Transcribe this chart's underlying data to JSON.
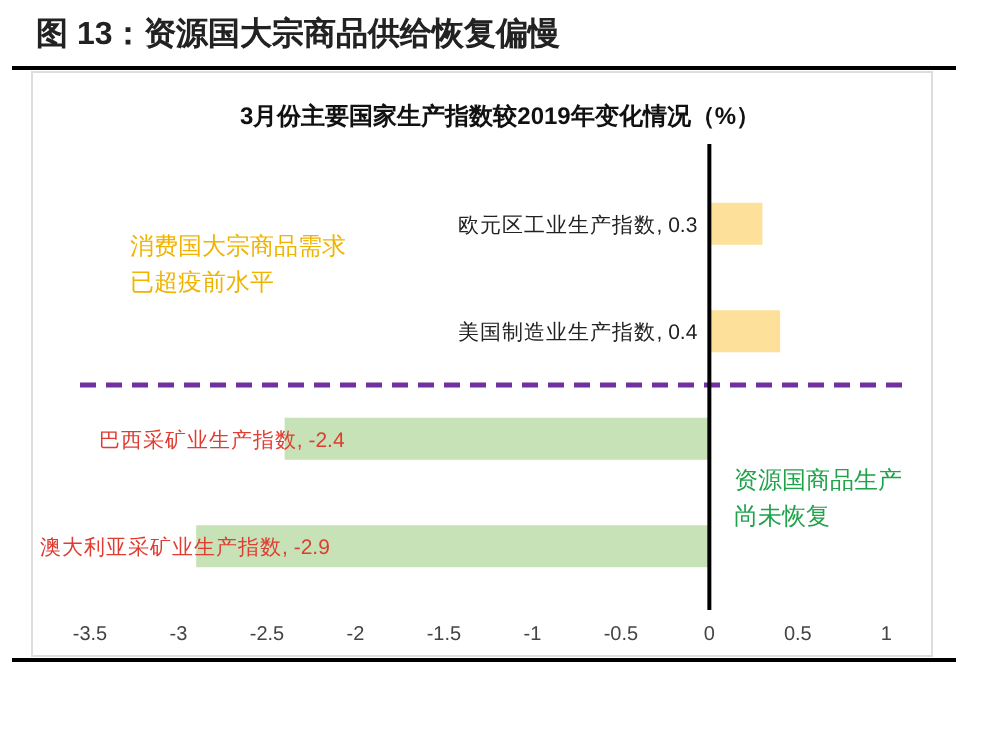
{
  "chart_data": {
    "type": "bar",
    "orientation": "horizontal",
    "title": "图 13：资源国大宗商品供给恢复偏慢",
    "subtitle": "3月份主要国家生产指数较2019年变化情况（%）",
    "categories": [
      "欧元区工业生产指数",
      "美国制造业生产指数",
      "巴西采矿业生产指数",
      "澳大利亚采矿业生产指数"
    ],
    "values": [
      0.3,
      0.4,
      -2.4,
      -2.9
    ],
    "colors": [
      "#fde09a",
      "#fde09a",
      "#c6e2b6",
      "#c6e2b6"
    ],
    "value_labels": [
      ", 0.3",
      ", 0.4",
      ", -2.4",
      ", -2.9"
    ],
    "xlim": [
      -3.5,
      1.1
    ],
    "xticks": [
      -3.5,
      -3,
      -2.5,
      -2,
      -1.5,
      -1,
      -0.5,
      0,
      0.5,
      1
    ],
    "tick_labels": "x",
    "annotations": [
      "消费国大宗商品需求已超疫前水平",
      "资源国商品生产尚未恢复"
    ]
  }
}
